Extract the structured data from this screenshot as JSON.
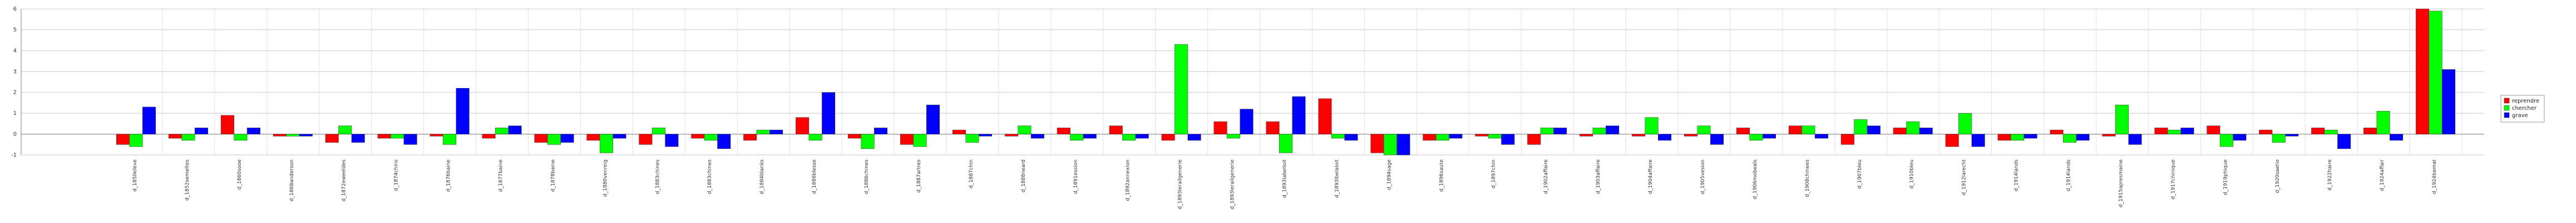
{
  "chart_data": {
    "type": "bar",
    "title": "",
    "xlabel": "",
    "ylabel": "",
    "ylim": [
      -1,
      6
    ],
    "y_ticks": [
      -1,
      0,
      1,
      2,
      3,
      4,
      5,
      6
    ],
    "grid": true,
    "legend_position": "right",
    "colors": [
      "#ff0000",
      "#00ff00",
      "#0000ff"
    ],
    "categories": [
      "d_1850eleve",
      "d_1852semeltes",
      "d_1860sooe",
      "d_1868anderson",
      "d_1872eweeldes",
      "d_1874chins",
      "d_1876baine",
      "d_1877baine",
      "d_1878baine",
      "d_1880venreig",
      "d_1883chines",
      "d_1883chines",
      "d_1884blanks",
      "d_1886blesse",
      "d_1886chines",
      "d_1887artres",
      "d_1887chin",
      "d_1888neard",
      "d_1891ession",
      "d_1892annexion",
      "d_1893lerailgenerie",
      "d_1893lerailgenerie",
      "d_1893labelloit",
      "d_1893lbelaloit",
      "d_1894sage",
      "d_1896saute",
      "d_1897chin",
      "d_1902affaire",
      "d_1903affaire",
      "d_1904affaire",
      "d_1905vesion",
      "d_1906mobeals",
      "d_1908chinees",
      "d_1907bleu",
      "d_1910bleu",
      "d_1912larecht",
      "d_1914lands",
      "d_1914lands",
      "d_1915apresmaine",
      "d_1917chinique",
      "d_1919phique",
      "d_1920saetio",
      "d_1922haire",
      "d_1924affair",
      "d_1924bamat"
    ],
    "series": [
      {
        "name": "reprendre",
        "values": [
          -0.5,
          -0.2,
          0.9,
          -0.1,
          -0.4,
          -0.2,
          -0.1,
          -0.2,
          -0.4,
          -0.3,
          -0.5,
          -0.2,
          -0.3,
          0.8,
          -0.2,
          -0.5,
          0.2,
          -0.1,
          0.3,
          0.4,
          -0.3,
          0.6,
          0.6,
          1.7,
          -0.9,
          -0.3,
          -0.1,
          -0.5,
          -0.1,
          -0.1,
          -0.1,
          0.3,
          0.4,
          -0.5,
          0.3,
          -0.6,
          -0.3,
          0.2,
          -0.1,
          0.3,
          0.4,
          0.2,
          0.3,
          0.3,
          6.0
        ]
      },
      {
        "name": "chercher",
        "values": [
          -0.6,
          -0.3,
          -0.3,
          -0.1,
          0.4,
          -0.2,
          -0.5,
          0.3,
          -0.5,
          -0.9,
          0.3,
          -0.3,
          0.2,
          -0.3,
          -0.7,
          -0.6,
          -0.4,
          0.4,
          -0.3,
          -0.3,
          4.3,
          -0.2,
          -0.9,
          -0.2,
          -1.0,
          -0.3,
          -0.2,
          0.3,
          0.3,
          0.8,
          0.4,
          -0.3,
          0.4,
          0.7,
          0.6,
          1.0,
          -0.3,
          -0.4,
          1.4,
          0.2,
          -0.6,
          -0.4,
          0.2,
          1.1,
          5.9
        ]
      },
      {
        "name": "grave",
        "values": [
          1.3,
          0.3,
          0.3,
          -0.1,
          -0.4,
          -0.5,
          2.2,
          0.4,
          -0.4,
          -0.2,
          -0.6,
          -0.7,
          0.2,
          2.0,
          0.3,
          1.4,
          -0.1,
          -0.2,
          -0.2,
          -0.2,
          -0.3,
          1.2,
          1.8,
          -0.3,
          -1.0,
          -0.2,
          -0.5,
          0.3,
          0.4,
          -0.3,
          -0.5,
          -0.2,
          -0.2,
          0.4,
          0.3,
          -0.6,
          -0.2,
          -0.3,
          -0.5,
          0.3,
          -0.3,
          -0.1,
          -0.7,
          -0.3,
          3.1
        ]
      }
    ]
  }
}
